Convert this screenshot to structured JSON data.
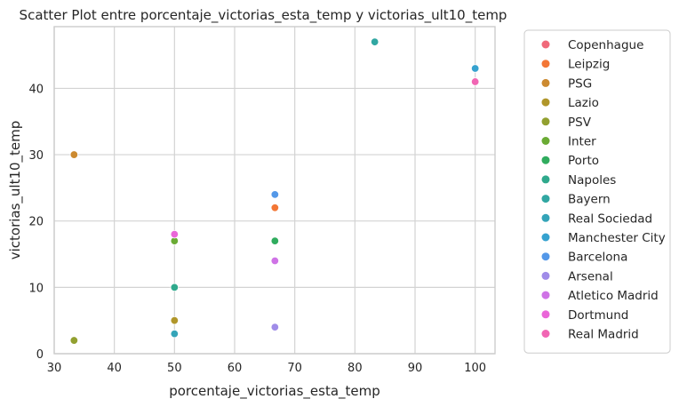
{
  "chart_data": {
    "type": "scatter",
    "title": "Scatter Plot entre porcentaje_victorias_esta_temp y victorias_ult10_temp",
    "xlabel": "porcentaje_victorias_esta_temp",
    "ylabel": "victorias_ult10_temp",
    "xlim": [
      30,
      103.3
    ],
    "ylim": [
      0,
      49.3
    ],
    "xticks": [
      30,
      40,
      50,
      60,
      70,
      80,
      90,
      100
    ],
    "yticks": [
      0,
      10,
      20,
      30,
      40
    ],
    "grid": true,
    "legend_position": "outside-right",
    "series": [
      {
        "name": "Copenhague",
        "color": "#f0697a",
        "points": []
      },
      {
        "name": "Leipzig",
        "color": "#f37736",
        "points": [
          [
            66.7,
            22
          ]
        ]
      },
      {
        "name": "PSG",
        "color": "#cc8a30",
        "points": [
          [
            33.3,
            30
          ]
        ]
      },
      {
        "name": "Lazio",
        "color": "#b0962a",
        "points": [
          [
            50,
            5
          ]
        ]
      },
      {
        "name": "PSV",
        "color": "#92a030",
        "points": [
          [
            33.3,
            2
          ]
        ]
      },
      {
        "name": "Inter",
        "color": "#6aab34",
        "points": [
          [
            50,
            17
          ]
        ]
      },
      {
        "name": "Porto",
        "color": "#30ac5e",
        "points": [
          [
            66.7,
            17
          ]
        ]
      },
      {
        "name": "Napoles",
        "color": "#2fa98c",
        "points": [
          [
            50,
            10
          ]
        ]
      },
      {
        "name": "Bayern",
        "color": "#31a7a2",
        "points": [
          [
            83.3,
            47
          ]
        ]
      },
      {
        "name": "Real Sociedad",
        "color": "#34a4b8",
        "points": [
          [
            50,
            3
          ]
        ]
      },
      {
        "name": "Manchester City",
        "color": "#36a2cf",
        "points": [
          [
            100,
            43
          ]
        ]
      },
      {
        "name": "Barcelona",
        "color": "#5498e8",
        "points": [
          [
            66.7,
            24
          ]
        ]
      },
      {
        "name": "Arsenal",
        "color": "#a08ce8",
        "points": [
          [
            66.7,
            4
          ]
        ]
      },
      {
        "name": "Atletico Madrid",
        "color": "#cf73e6",
        "points": [
          [
            66.7,
            14
          ]
        ]
      },
      {
        "name": "Dortmund",
        "color": "#ea66d8",
        "points": [
          [
            50,
            18
          ]
        ]
      },
      {
        "name": "Real Madrid",
        "color": "#f166b4",
        "points": [
          [
            100,
            41
          ]
        ]
      }
    ]
  }
}
